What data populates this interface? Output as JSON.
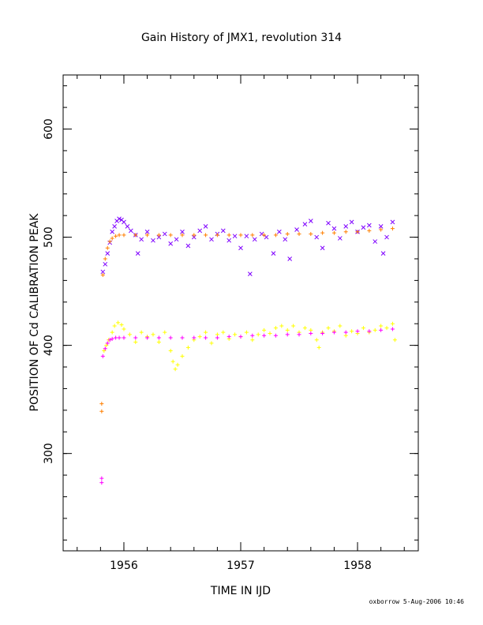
{
  "chart_data": {
    "type": "scatter",
    "title": "Gain History of JMX1, revolution 314",
    "xlabel": "TIME IN IJD",
    "ylabel": "POSITION OF Cd CALIBRATION PEAK",
    "xlim": [
      1955.48,
      1958.52
    ],
    "ylim": [
      210,
      650
    ],
    "x_ticks": [
      1956,
      1957,
      1958
    ],
    "x_tick_labels": [
      "1956",
      "1957",
      "1958"
    ],
    "y_ticks": [
      300,
      400,
      500,
      600
    ],
    "y_tick_labels": [
      "300",
      "400",
      "500",
      "600"
    ],
    "grid": false,
    "series": [
      {
        "color": "#7f00ff",
        "marker": "x",
        "points": [
          [
            1955.82,
            468
          ],
          [
            1955.84,
            475
          ],
          [
            1955.86,
            485
          ],
          [
            1955.88,
            495
          ],
          [
            1955.9,
            505
          ],
          [
            1955.92,
            510
          ],
          [
            1955.94,
            515
          ],
          [
            1955.96,
            517
          ],
          [
            1955.98,
            516
          ],
          [
            1956.0,
            514
          ],
          [
            1956.03,
            510
          ],
          [
            1956.06,
            506
          ],
          [
            1956.1,
            502
          ],
          [
            1956.12,
            485
          ],
          [
            1956.15,
            498
          ],
          [
            1956.2,
            505
          ],
          [
            1956.25,
            497
          ],
          [
            1956.3,
            500
          ],
          [
            1956.35,
            503
          ],
          [
            1956.4,
            494
          ],
          [
            1956.45,
            498
          ],
          [
            1956.5,
            505
          ],
          [
            1956.55,
            492
          ],
          [
            1956.6,
            500
          ],
          [
            1956.65,
            506
          ],
          [
            1956.7,
            510
          ],
          [
            1956.75,
            498
          ],
          [
            1956.8,
            503
          ],
          [
            1956.85,
            506
          ],
          [
            1956.9,
            497
          ],
          [
            1956.95,
            501
          ],
          [
            1957.0,
            490
          ],
          [
            1957.05,
            501
          ],
          [
            1957.08,
            466
          ],
          [
            1957.12,
            498
          ],
          [
            1957.18,
            503
          ],
          [
            1957.22,
            500
          ],
          [
            1957.28,
            485
          ],
          [
            1957.33,
            505
          ],
          [
            1957.38,
            498
          ],
          [
            1957.42,
            480
          ],
          [
            1957.48,
            507
          ],
          [
            1957.55,
            512
          ],
          [
            1957.6,
            515
          ],
          [
            1957.65,
            500
          ],
          [
            1957.7,
            490
          ],
          [
            1957.75,
            513
          ],
          [
            1957.8,
            508
          ],
          [
            1957.85,
            499
          ],
          [
            1957.9,
            510
          ],
          [
            1957.95,
            514
          ],
          [
            1958.0,
            505
          ],
          [
            1958.05,
            509
          ],
          [
            1958.1,
            511
          ],
          [
            1958.15,
            496
          ],
          [
            1958.2,
            510
          ],
          [
            1958.22,
            485
          ],
          [
            1958.25,
            500
          ],
          [
            1958.3,
            514
          ]
        ]
      },
      {
        "color": "#ff7f00",
        "marker": "+",
        "points": [
          [
            1955.81,
            346
          ],
          [
            1955.81,
            339
          ],
          [
            1955.82,
            465
          ],
          [
            1955.84,
            480
          ],
          [
            1955.86,
            490
          ],
          [
            1955.88,
            496
          ],
          [
            1955.9,
            499
          ],
          [
            1955.93,
            501
          ],
          [
            1955.96,
            502
          ],
          [
            1956.0,
            502
          ],
          [
            1956.1,
            502
          ],
          [
            1956.2,
            502
          ],
          [
            1956.3,
            502
          ],
          [
            1956.4,
            502
          ],
          [
            1956.5,
            502
          ],
          [
            1956.6,
            502
          ],
          [
            1956.7,
            502
          ],
          [
            1956.8,
            502
          ],
          [
            1956.9,
            502
          ],
          [
            1957.0,
            502
          ],
          [
            1957.1,
            502
          ],
          [
            1957.2,
            502
          ],
          [
            1957.3,
            502
          ],
          [
            1957.4,
            503
          ],
          [
            1957.5,
            503
          ],
          [
            1957.6,
            503
          ],
          [
            1957.7,
            504
          ],
          [
            1957.8,
            504
          ],
          [
            1957.9,
            505
          ],
          [
            1958.0,
            505
          ],
          [
            1958.1,
            506
          ],
          [
            1958.2,
            507
          ],
          [
            1958.3,
            508
          ]
        ]
      },
      {
        "color": "#ffff00",
        "marker": "+",
        "points": [
          [
            1955.83,
            395
          ],
          [
            1955.85,
            400
          ],
          [
            1955.87,
            405
          ],
          [
            1955.9,
            412
          ],
          [
            1955.92,
            418
          ],
          [
            1955.95,
            421
          ],
          [
            1955.98,
            419
          ],
          [
            1956.0,
            415
          ],
          [
            1956.05,
            410
          ],
          [
            1956.1,
            403
          ],
          [
            1956.15,
            412
          ],
          [
            1956.2,
            408
          ],
          [
            1956.25,
            410
          ],
          [
            1956.3,
            403
          ],
          [
            1956.35,
            412
          ],
          [
            1956.4,
            395
          ],
          [
            1956.42,
            385
          ],
          [
            1956.44,
            378
          ],
          [
            1956.46,
            382
          ],
          [
            1956.5,
            390
          ],
          [
            1956.55,
            398
          ],
          [
            1956.6,
            405
          ],
          [
            1956.65,
            408
          ],
          [
            1956.7,
            412
          ],
          [
            1956.75,
            402
          ],
          [
            1956.8,
            410
          ],
          [
            1956.85,
            412
          ],
          [
            1956.9,
            406
          ],
          [
            1956.95,
            410
          ],
          [
            1957.0,
            408
          ],
          [
            1957.05,
            412
          ],
          [
            1957.1,
            405
          ],
          [
            1957.15,
            410
          ],
          [
            1957.2,
            414
          ],
          [
            1957.25,
            411
          ],
          [
            1957.3,
            416
          ],
          [
            1957.35,
            418
          ],
          [
            1957.4,
            414
          ],
          [
            1957.45,
            418
          ],
          [
            1957.5,
            412
          ],
          [
            1957.55,
            416
          ],
          [
            1957.6,
            414
          ],
          [
            1957.65,
            405
          ],
          [
            1957.67,
            398
          ],
          [
            1957.7,
            412
          ],
          [
            1957.75,
            416
          ],
          [
            1957.8,
            413
          ],
          [
            1957.85,
            418
          ],
          [
            1957.9,
            409
          ],
          [
            1957.95,
            413
          ],
          [
            1958.0,
            411
          ],
          [
            1958.05,
            416
          ],
          [
            1958.1,
            412
          ],
          [
            1958.15,
            414
          ],
          [
            1958.2,
            418
          ],
          [
            1958.25,
            416
          ],
          [
            1958.3,
            420
          ],
          [
            1958.32,
            405
          ]
        ]
      },
      {
        "color": "#ff00ff",
        "marker": "+",
        "points": [
          [
            1955.81,
            277
          ],
          [
            1955.81,
            273
          ],
          [
            1955.82,
            390
          ],
          [
            1955.84,
            397
          ],
          [
            1955.86,
            402
          ],
          [
            1955.88,
            405
          ],
          [
            1955.9,
            406
          ],
          [
            1955.93,
            407
          ],
          [
            1955.96,
            407
          ],
          [
            1956.0,
            407
          ],
          [
            1956.1,
            407
          ],
          [
            1956.2,
            407
          ],
          [
            1956.3,
            407
          ],
          [
            1956.4,
            407
          ],
          [
            1956.5,
            407
          ],
          [
            1956.6,
            407
          ],
          [
            1956.7,
            407
          ],
          [
            1956.8,
            407
          ],
          [
            1956.9,
            408
          ],
          [
            1957.0,
            408
          ],
          [
            1957.1,
            409
          ],
          [
            1957.2,
            409
          ],
          [
            1957.3,
            409
          ],
          [
            1957.4,
            410
          ],
          [
            1957.5,
            410
          ],
          [
            1957.6,
            411
          ],
          [
            1957.7,
            411
          ],
          [
            1957.8,
            412
          ],
          [
            1957.9,
            412
          ],
          [
            1958.0,
            413
          ],
          [
            1958.1,
            413
          ],
          [
            1958.2,
            414
          ],
          [
            1958.3,
            415
          ]
        ]
      }
    ]
  },
  "footer": "oxborrow  5-Aug-2006 10:46"
}
